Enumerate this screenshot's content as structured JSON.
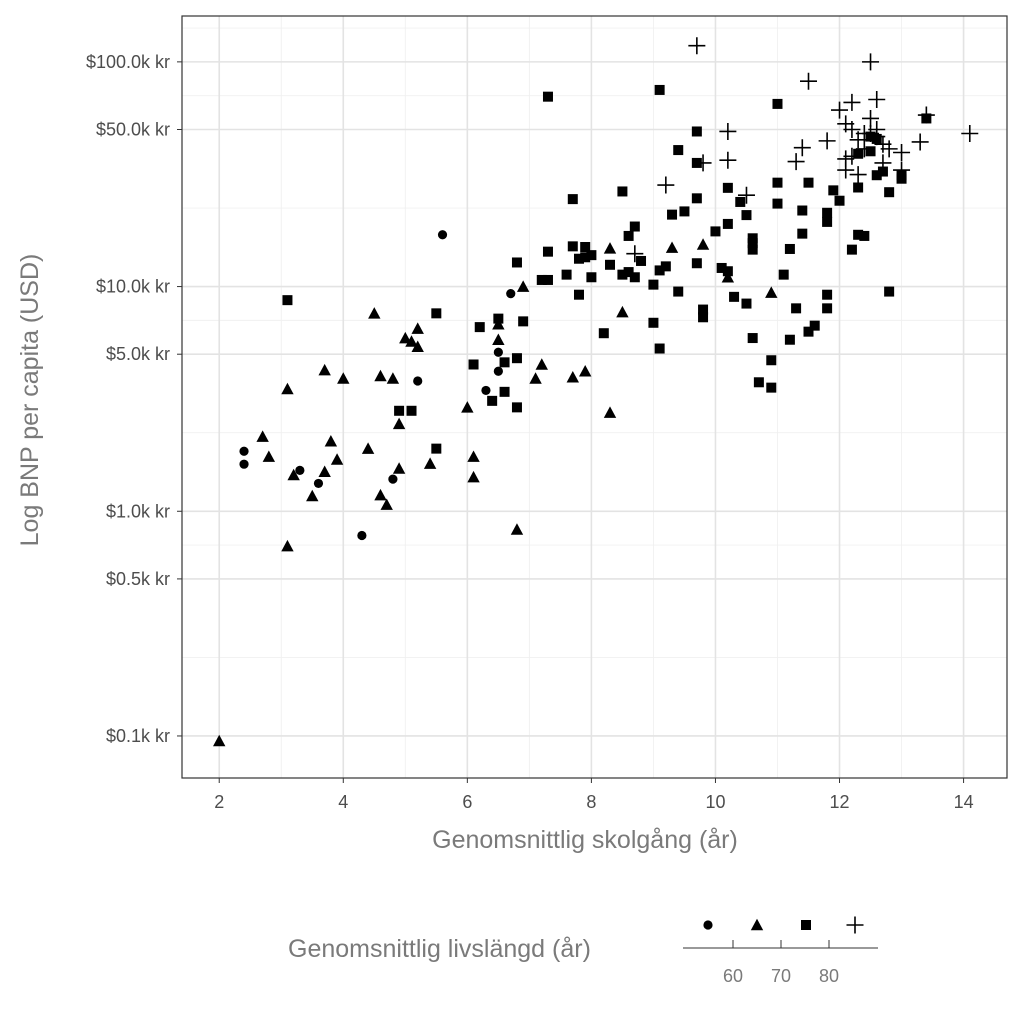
{
  "chart_data": {
    "type": "scatter",
    "xlabel": "Genomsnittlig skolgång (år)",
    "ylabel": "Log BNP per capita (USD)",
    "x_scale": "linear",
    "y_scale": "log",
    "xlim": [
      1.4,
      14.7
    ],
    "ylim": [
      65,
      160000
    ],
    "x_ticks": [
      2,
      4,
      6,
      8,
      10,
      12,
      14
    ],
    "x_tick_labels": [
      "2",
      "4",
      "6",
      "8",
      "10",
      "12",
      "14"
    ],
    "y_ticks": [
      100,
      500,
      1000,
      5000,
      10000,
      50000,
      100000
    ],
    "y_tick_labels": [
      "$0.1k kr",
      "$0.5k kr",
      "$1.0k kr",
      "$5.0k kr",
      "$10.0k kr",
      "$50.0k kr",
      "$100.0k kr"
    ],
    "grid": true,
    "legend": {
      "title": "Genomsnittlig livslängd (år)",
      "position": "bottom",
      "shapes": [
        "circle",
        "triangle",
        "square",
        "plus"
      ],
      "scale_labels": [
        "60",
        "70",
        "80"
      ]
    },
    "series": [
      {
        "shape": "circle",
        "points": [
          [
            2.4,
            1850
          ],
          [
            2.4,
            1620
          ],
          [
            3.3,
            1520
          ],
          [
            3.6,
            1330
          ],
          [
            4.3,
            780
          ],
          [
            4.8,
            1390
          ],
          [
            5.2,
            3800
          ],
          [
            5.6,
            17000
          ],
          [
            6.3,
            3450
          ],
          [
            6.5,
            5100
          ],
          [
            6.5,
            4200
          ],
          [
            6.7,
            9300
          ]
        ]
      },
      {
        "shape": "triangle",
        "points": [
          [
            2.0,
            95
          ],
          [
            2.7,
            2150
          ],
          [
            2.8,
            1750
          ],
          [
            3.1,
            3500
          ],
          [
            3.1,
            700
          ],
          [
            3.2,
            1450
          ],
          [
            3.5,
            1170
          ],
          [
            3.7,
            4250
          ],
          [
            3.7,
            1500
          ],
          [
            3.8,
            2050
          ],
          [
            3.9,
            1700
          ],
          [
            4.0,
            3900
          ],
          [
            4.4,
            1900
          ],
          [
            4.5,
            7600
          ],
          [
            4.6,
            4000
          ],
          [
            4.6,
            1180
          ],
          [
            4.7,
            1070
          ],
          [
            4.8,
            3900
          ],
          [
            4.9,
            2450
          ],
          [
            4.9,
            1550
          ],
          [
            5.0,
            5900
          ],
          [
            5.1,
            5700
          ],
          [
            5.2,
            6500
          ],
          [
            5.2,
            5400
          ],
          [
            5.4,
            1630
          ],
          [
            6.0,
            2900
          ],
          [
            6.1,
            1750
          ],
          [
            6.1,
            1420
          ],
          [
            6.5,
            6800
          ],
          [
            6.5,
            5800
          ],
          [
            6.8,
            830
          ],
          [
            6.9,
            10000
          ],
          [
            7.1,
            3900
          ],
          [
            7.2,
            4500
          ],
          [
            7.7,
            3950
          ],
          [
            7.9,
            4200
          ],
          [
            8.3,
            14800
          ],
          [
            8.3,
            2750
          ],
          [
            8.5,
            7700
          ],
          [
            9.3,
            14900
          ],
          [
            9.8,
            15400
          ],
          [
            10.2,
            11000
          ],
          [
            10.9,
            9400
          ]
        ]
      },
      {
        "shape": "square",
        "points": [
          [
            3.1,
            8700
          ],
          [
            4.9,
            2800
          ],
          [
            5.1,
            2800
          ],
          [
            5.5,
            7600
          ],
          [
            5.5,
            1900
          ],
          [
            6.1,
            4500
          ],
          [
            6.2,
            6600
          ],
          [
            6.4,
            3100
          ],
          [
            6.5,
            7200
          ],
          [
            6.6,
            3400
          ],
          [
            6.6,
            4600
          ],
          [
            6.8,
            12800
          ],
          [
            6.8,
            4800
          ],
          [
            6.8,
            2900
          ],
          [
            6.9,
            7000
          ],
          [
            7.2,
            10700
          ],
          [
            7.3,
            14300
          ],
          [
            7.3,
            10700
          ],
          [
            7.3,
            70000
          ],
          [
            7.6,
            11300
          ],
          [
            7.7,
            24500
          ],
          [
            7.7,
            15100
          ],
          [
            7.8,
            9200
          ],
          [
            7.8,
            13300
          ],
          [
            7.9,
            15000
          ],
          [
            7.9,
            13500
          ],
          [
            8.0,
            11000
          ],
          [
            8.0,
            13800
          ],
          [
            8.2,
            6200
          ],
          [
            8.3,
            12500
          ],
          [
            8.5,
            26500
          ],
          [
            8.5,
            11300
          ],
          [
            8.6,
            16800
          ],
          [
            8.6,
            11600
          ],
          [
            8.7,
            18500
          ],
          [
            8.7,
            11000
          ],
          [
            8.8,
            13000
          ],
          [
            9.0,
            10200
          ],
          [
            9.0,
            6900
          ],
          [
            9.1,
            11800
          ],
          [
            9.1,
            5300
          ],
          [
            9.1,
            75000
          ],
          [
            9.2,
            12300
          ],
          [
            9.3,
            20900
          ],
          [
            9.4,
            40500
          ],
          [
            9.4,
            9500
          ],
          [
            9.5,
            21600
          ],
          [
            9.7,
            49000
          ],
          [
            9.7,
            35500
          ],
          [
            9.7,
            12700
          ],
          [
            9.7,
            24700
          ],
          [
            9.8,
            7300
          ],
          [
            9.8,
            7900
          ],
          [
            10.0,
            17600
          ],
          [
            10.1,
            12100
          ],
          [
            10.2,
            27500
          ],
          [
            10.2,
            19000
          ],
          [
            10.2,
            11700
          ],
          [
            10.3,
            9000
          ],
          [
            10.4,
            23800
          ],
          [
            10.5,
            8400
          ],
          [
            10.5,
            20800
          ],
          [
            10.6,
            14600
          ],
          [
            10.6,
            15600
          ],
          [
            10.6,
            16400
          ],
          [
            10.6,
            5900
          ],
          [
            10.7,
            3750
          ],
          [
            10.9,
            3550
          ],
          [
            10.9,
            4700
          ],
          [
            11.0,
            65000
          ],
          [
            11.0,
            29000
          ],
          [
            11.0,
            23400
          ],
          [
            11.1,
            11300
          ],
          [
            11.2,
            14700
          ],
          [
            11.2,
            5800
          ],
          [
            11.3,
            8000
          ],
          [
            11.4,
            21800
          ],
          [
            11.4,
            17200
          ],
          [
            11.5,
            29000
          ],
          [
            11.5,
            6300
          ],
          [
            11.6,
            6700
          ],
          [
            11.8,
            19400
          ],
          [
            11.8,
            21300
          ],
          [
            11.8,
            9200
          ],
          [
            11.8,
            8000
          ],
          [
            11.9,
            26800
          ],
          [
            12.0,
            24100
          ],
          [
            12.2,
            14600
          ],
          [
            12.3,
            27600
          ],
          [
            12.3,
            17000
          ],
          [
            12.3,
            39000
          ],
          [
            12.4,
            16800
          ],
          [
            12.5,
            46500
          ],
          [
            12.5,
            40000
          ],
          [
            12.6,
            45400
          ],
          [
            12.6,
            31300
          ],
          [
            12.7,
            32500
          ],
          [
            12.8,
            26300
          ],
          [
            12.8,
            9500
          ],
          [
            13.0,
            31300
          ],
          [
            13.0,
            30200
          ],
          [
            13.4,
            56000
          ]
        ]
      },
      {
        "shape": "plus",
        "points": [
          [
            8.7,
            14000
          ],
          [
            9.2,
            28300
          ],
          [
            9.7,
            118000
          ],
          [
            9.8,
            35500
          ],
          [
            10.2,
            49000
          ],
          [
            10.2,
            36500
          ],
          [
            10.5,
            25500
          ],
          [
            11.3,
            36000
          ],
          [
            11.4,
            41500
          ],
          [
            11.5,
            82000
          ],
          [
            11.8,
            44500
          ],
          [
            12.0,
            61000
          ],
          [
            12.1,
            53000
          ],
          [
            12.1,
            37000
          ],
          [
            12.1,
            33000
          ],
          [
            12.2,
            66000
          ],
          [
            12.2,
            50000
          ],
          [
            12.2,
            38000
          ],
          [
            12.3,
            45000
          ],
          [
            12.3,
            31500
          ],
          [
            12.4,
            48000
          ],
          [
            12.4,
            41000
          ],
          [
            12.5,
            100000
          ],
          [
            12.5,
            56000
          ],
          [
            12.5,
            48000
          ],
          [
            12.6,
            68000
          ],
          [
            12.6,
            50000
          ],
          [
            12.6,
            46500
          ],
          [
            12.7,
            43000
          ],
          [
            12.7,
            35500
          ],
          [
            12.8,
            41000
          ],
          [
            13.0,
            39500
          ],
          [
            13.0,
            33000
          ],
          [
            13.3,
            44000
          ],
          [
            13.4,
            58000
          ],
          [
            14.1,
            48000
          ]
        ]
      }
    ]
  }
}
